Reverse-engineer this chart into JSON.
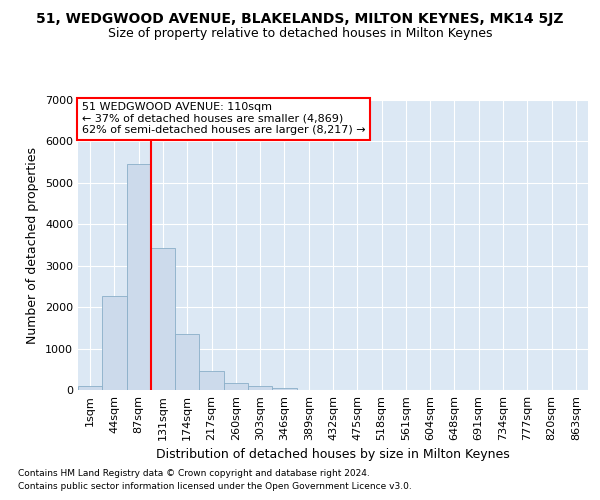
{
  "title": "51, WEDGWOOD AVENUE, BLAKELANDS, MILTON KEYNES, MK14 5JZ",
  "subtitle": "Size of property relative to detached houses in Milton Keynes",
  "xlabel": "Distribution of detached houses by size in Milton Keynes",
  "ylabel": "Number of detached properties",
  "footer_line1": "Contains HM Land Registry data © Crown copyright and database right 2024.",
  "footer_line2": "Contains public sector information licensed under the Open Government Licence v3.0.",
  "annotation_line1": "51 WEDGWOOD AVENUE: 110sqm",
  "annotation_line2": "← 37% of detached houses are smaller (4,869)",
  "annotation_line3": "62% of semi-detached houses are larger (8,217) →",
  "bar_labels": [
    "1sqm",
    "44sqm",
    "87sqm",
    "131sqm",
    "174sqm",
    "217sqm",
    "260sqm",
    "303sqm",
    "346sqm",
    "389sqm",
    "432sqm",
    "475sqm",
    "518sqm",
    "561sqm",
    "604sqm",
    "648sqm",
    "691sqm",
    "734sqm",
    "777sqm",
    "820sqm",
    "863sqm"
  ],
  "bar_values": [
    100,
    2280,
    5450,
    3420,
    1340,
    460,
    175,
    100,
    60,
    0,
    0,
    0,
    0,
    0,
    0,
    0,
    0,
    0,
    0,
    0,
    0
  ],
  "bar_color": "#ccdaeb",
  "bar_edge_color": "#8aaec8",
  "vline_x": 2.5,
  "vline_color": "red",
  "ylim": [
    0,
    7000
  ],
  "yticks": [
    0,
    1000,
    2000,
    3000,
    4000,
    5000,
    6000,
    7000
  ],
  "bg_color": "#dce8f4",
  "grid_color": "white",
  "title_fontsize": 10,
  "subtitle_fontsize": 9,
  "axis_label_fontsize": 9,
  "tick_fontsize": 8,
  "footer_fontsize": 6.5,
  "annotation_fontsize": 8
}
